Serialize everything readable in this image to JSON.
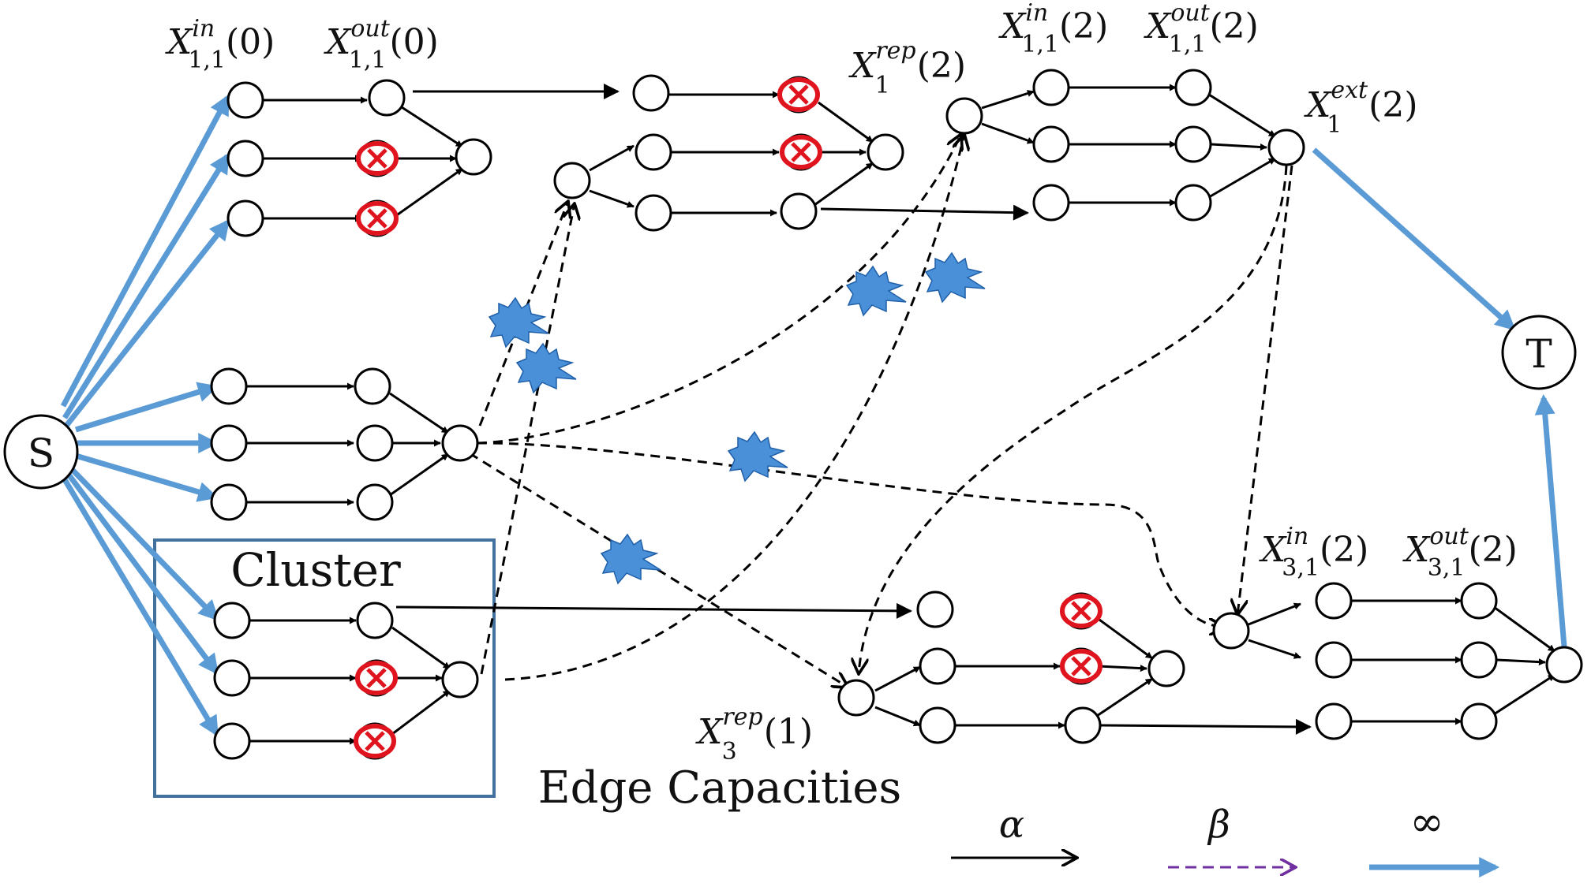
{
  "nodes": {
    "source": "S",
    "sink": "T"
  },
  "labels": {
    "x11in0": {
      "base": "X",
      "sup": "in",
      "sub": "1,1",
      "arg": "(0)"
    },
    "x11out0": {
      "base": "X",
      "sup": "out",
      "sub": "1,1",
      "arg": "(0)"
    },
    "x1rep2": {
      "base": "X",
      "sup": "rep",
      "sub": "1",
      "arg": "(2)"
    },
    "x11in2": {
      "base": "X",
      "sup": "in",
      "sub": "1,1",
      "arg": "(2)"
    },
    "x11out2": {
      "base": "X",
      "sup": "out",
      "sub": "1,1",
      "arg": "(2)"
    },
    "x1ext2": {
      "base": "X",
      "sup": "ext",
      "sub": "1",
      "arg": "(2)"
    },
    "x31in2": {
      "base": "X",
      "sup": "in",
      "sub": "3,1",
      "arg": "(2)"
    },
    "x31out2": {
      "base": "X",
      "sup": "out",
      "sub": "3,1",
      "arg": "(2)"
    },
    "x3rep1": {
      "base": "X",
      "sup": "rep",
      "sub": "3",
      "arg": "(1)"
    }
  },
  "cluster_label": "Cluster",
  "legend": {
    "title": "Edge  Capacities",
    "solid": "α",
    "dashed": "β",
    "thick": "∞"
  },
  "colors": {
    "infinite_edge": "#5B9BD5",
    "failure_mark": "#E0141E",
    "link_failure": "#4A90D9",
    "legend_dashed": "#7030A0",
    "cluster_box": "#41719C"
  }
}
